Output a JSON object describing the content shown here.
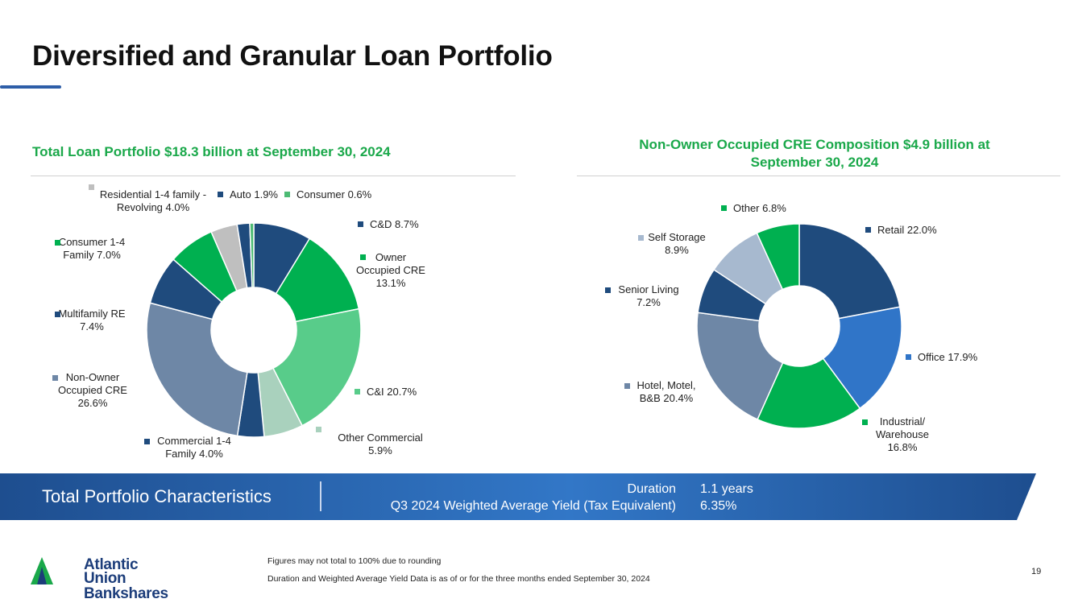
{
  "slide": {
    "title": "Diversified and Granular Loan Portfolio",
    "page_number": "19"
  },
  "chart_data": [
    {
      "type": "donut",
      "title": "Total Loan Portfolio $18.3 billion at September 30, 2024",
      "series": [
        {
          "name": "C&D",
          "label_lines": [
            "C&D 8.7%"
          ],
          "value": 8.7,
          "color": "#1f4b7d"
        },
        {
          "name": "Owner Occupied CRE",
          "label_lines": [
            "Owner",
            "Occupied CRE",
            "13.1%"
          ],
          "value": 13.1,
          "color": "#00b050"
        },
        {
          "name": "C&I",
          "label_lines": [
            "C&I 20.7%"
          ],
          "value": 20.7,
          "color": "#58cc8a"
        },
        {
          "name": "Other Commercial",
          "label_lines": [
            "Other Commercial",
            "5.9%"
          ],
          "value": 5.9,
          "color": "#a9d1bd"
        },
        {
          "name": "Commercial 1-4 Family",
          "label_lines": [
            "Commercial 1-4",
            "Family 4.0%"
          ],
          "value": 4.0,
          "color": "#1f4b7d"
        },
        {
          "name": "Non-Owner Occupied CRE",
          "label_lines": [
            "Non-Owner",
            "Occupied CRE",
            "26.6%"
          ],
          "value": 26.6,
          "color": "#6e87a6"
        },
        {
          "name": "Multifamily RE",
          "label_lines": [
            "Multifamily RE",
            "7.4%"
          ],
          "value": 7.4,
          "color": "#1f4b7d"
        },
        {
          "name": "Consumer 1-4 Family",
          "label_lines": [
            "Consumer 1-4",
            "Family  7.0%"
          ],
          "value": 7.0,
          "color": "#00b050"
        },
        {
          "name": "Residential 1-4 family - Revolving",
          "label_lines": [
            "Residential 1-4 family -",
            "Revolving 4.0%"
          ],
          "value": 4.0,
          "color": "#bfbfbf"
        },
        {
          "name": "Auto",
          "label_lines": [
            "Auto 1.9%"
          ],
          "value": 1.9,
          "color": "#1f4b7d"
        },
        {
          "name": "Consumer",
          "label_lines": [
            "Consumer 0.6%"
          ],
          "value": 0.6,
          "color": "#4dbb74"
        }
      ]
    },
    {
      "type": "donut",
      "title": "Non-Owner Occupied CRE Composition $4.9 billion at September 30, 2024",
      "series": [
        {
          "name": "Retail",
          "label_lines": [
            "Retail 22.0%"
          ],
          "value": 22.0,
          "color": "#1f4b7d"
        },
        {
          "name": "Office",
          "label_lines": [
            "Office 17.9%"
          ],
          "value": 17.9,
          "color": "#3075c8"
        },
        {
          "name": "Industrial/ Warehouse",
          "label_lines": [
            "Industrial/",
            "Warehouse",
            "16.8%"
          ],
          "value": 16.8,
          "color": "#00b050"
        },
        {
          "name": "Hotel, Motel, B&B",
          "label_lines": [
            "Hotel, Motel,",
            "B&B 20.4%"
          ],
          "value": 20.4,
          "color": "#6e87a6"
        },
        {
          "name": "Senior Living",
          "label_lines": [
            "Senior Living",
            "7.2%"
          ],
          "value": 7.2,
          "color": "#1f4b7d"
        },
        {
          "name": "Self Storage",
          "label_lines": [
            "Self Storage",
            "8.9%"
          ],
          "value": 8.9,
          "color": "#a7b9cf"
        },
        {
          "name": "Other",
          "label_lines": [
            "Other  6.8%"
          ],
          "value": 6.8,
          "color": "#00b050"
        }
      ]
    }
  ],
  "characteristics": {
    "heading": "Total Portfolio Characteristics",
    "duration_label": "Duration",
    "duration_value": "1.1 years",
    "yield_label": "Q3 2024 Weighted Average Yield (Tax Equivalent)",
    "yield_value": "6.35%"
  },
  "footnotes": {
    "rounding": "Figures may not total to 100% due to rounding",
    "data_as_of": "Duration and Weighted Average Yield Data is as of or for the three months ended September 30, 2024"
  },
  "logo": {
    "line1": "Atlantic",
    "line2": "Union Bankshares"
  },
  "colors": {
    "accent_green": "#1aa84a",
    "band_dark": "#1e4e8f",
    "band_light": "#3277c7"
  }
}
